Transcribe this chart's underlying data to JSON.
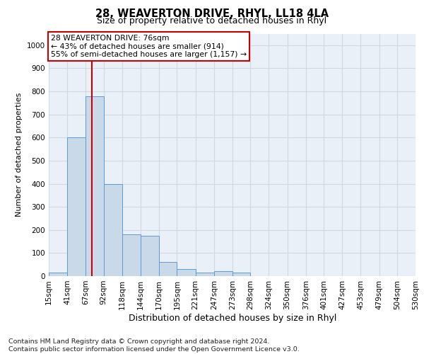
{
  "title1": "28, WEAVERTON DRIVE, RHYL, LL18 4LA",
  "title2": "Size of property relative to detached houses in Rhyl",
  "xlabel": "Distribution of detached houses by size in Rhyl",
  "ylabel": "Number of detached properties",
  "footnote": "Contains HM Land Registry data © Crown copyright and database right 2024.\nContains public sector information licensed under the Open Government Licence v3.0.",
  "bin_labels": [
    "15sqm",
    "41sqm",
    "67sqm",
    "92sqm",
    "118sqm",
    "144sqm",
    "170sqm",
    "195sqm",
    "221sqm",
    "247sqm",
    "273sqm",
    "298sqm",
    "324sqm",
    "350sqm",
    "376sqm",
    "401sqm",
    "427sqm",
    "453sqm",
    "479sqm",
    "504sqm",
    "530sqm"
  ],
  "bar_values": [
    15,
    600,
    780,
    400,
    180,
    175,
    60,
    30,
    15,
    20,
    15,
    0,
    0,
    0,
    0,
    0,
    0,
    0,
    0,
    0
  ],
  "bar_color": "#c9d9e8",
  "bar_edge_color": "#5b9bd5",
  "grid_color": "#d0d8e4",
  "background_color": "#eaf0f8",
  "vline_color": "#cc0000",
  "vline_x_sqm": 76,
  "annotation_text": "28 WEAVERTON DRIVE: 76sqm\n← 43% of detached houses are smaller (914)\n55% of semi-detached houses are larger (1,157) →",
  "annotation_box_facecolor": "#ffffff",
  "annotation_box_edgecolor": "#cc0000",
  "ylim": [
    0,
    1050
  ],
  "yticks": [
    0,
    100,
    200,
    300,
    400,
    500,
    600,
    700,
    800,
    900,
    1000
  ],
  "title1_fontsize": 10.5,
  "title2_fontsize": 9,
  "ylabel_fontsize": 8,
  "xlabel_fontsize": 9,
  "tick_fontsize": 7.5,
  "footnote_fontsize": 6.8
}
